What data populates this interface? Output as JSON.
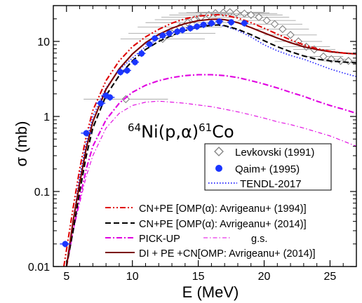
{
  "chart_data": {
    "type": "line",
    "title": "",
    "reaction": {
      "prefix_mass": "64",
      "element": "Ni(p,α)",
      "product_mass": "61",
      "product": "Co"
    },
    "xlabel": "E (MeV)",
    "ylabel": "σ (mb)",
    "xlim": [
      4,
      27
    ],
    "ylim": [
      0.01,
      30
    ],
    "yscale": "log",
    "x_ticks": [
      5,
      10,
      15,
      20,
      25
    ],
    "x_tick_labels": [
      "5",
      "10",
      "15",
      "20",
      "25"
    ],
    "y_ticks": [
      0.01,
      0.1,
      1,
      10
    ],
    "y_tick_labels": [
      "0.01",
      "0.1",
      "1",
      "10"
    ],
    "grid": false,
    "legend_top": {
      "placement": "right-middle",
      "entries": [
        "Levkovski (1991)",
        "Qaim+ (1995)",
        "TENDL-2017"
      ]
    },
    "legend_bottom": {
      "placement": "bottom",
      "entries": [
        "CN+PE [OMP(α): Avrigeanu+ (1994)]",
        "CN+PE [OMP(α): Avrigeanu+ (2014)]",
        "PICK-UP",
        "g.s.",
        "DI + PE +CN[OMP: Avrigeanu+ (2014)]"
      ]
    },
    "series": [
      {
        "name": "Levkovski (1991)",
        "kind": "scatter",
        "marker": "diamond-open",
        "color": "#808080",
        "x": [
          9.5,
          12.3,
          13.0,
          13.6,
          14.2,
          14.7,
          15.2,
          15.8,
          16.3,
          16.9,
          17.4,
          17.9,
          18.5,
          19.0,
          19.6,
          20.2,
          20.8,
          21.4,
          22.0,
          22.6,
          23.2,
          23.8,
          24.5,
          25.1,
          25.8,
          26.4
        ],
        "y": [
          1.7,
          10.8,
          12.8,
          15.5,
          17.8,
          19.5,
          21.0,
          22.5,
          23.8,
          24.2,
          24.5,
          24.0,
          23.5,
          22.5,
          21.0,
          19.0,
          17.0,
          14.6,
          12.2,
          10.0,
          8.5,
          7.8,
          6.3,
          5.8,
          5.5,
          5.5
        ],
        "xerr": [
          3.2,
          3.2,
          3.3,
          3.2,
          3.2,
          3.0,
          3.0,
          3.0,
          2.8,
          2.8,
          2.6,
          2.5,
          2.5,
          2.4,
          2.3,
          2.2,
          2.1,
          2.0,
          2.0,
          1.8,
          1.8,
          1.6,
          1.5,
          1.4,
          1.3,
          1.2
        ]
      },
      {
        "name": "Qaim+ (1995)",
        "kind": "scatter",
        "marker": "circle-filled",
        "color": "#1a35ff",
        "x": [
          4.9,
          6.5,
          7.6,
          8.0,
          8.3,
          9.1,
          9.6,
          10.2,
          10.7,
          11.3,
          11.7,
          12.3,
          12.8,
          13.4,
          13.8,
          14.4,
          14.9,
          15.4,
          16.0,
          16.6,
          17.5,
          18.5
        ],
        "y": [
          0.02,
          0.6,
          1.5,
          1.9,
          1.8,
          3.9,
          4.1,
          5.3,
          6.9,
          9.2,
          11.0,
          12.0,
          12.8,
          13.5,
          14.2,
          15.0,
          15.8,
          16.7,
          17.5,
          18.5,
          18.0,
          17.5
        ],
        "xerr": [
          0.4,
          0.4,
          0.35,
          0.35,
          0.35,
          0.3,
          0.3,
          0.3,
          0.3,
          0.3,
          0.3,
          0.3,
          0.3,
          0.3,
          0.3,
          0.3,
          0.3,
          0.3,
          0.3,
          0.3,
          0.3,
          0.3
        ],
        "yerr_frac": 0.1
      },
      {
        "name": "TENDL-2017",
        "kind": "line",
        "style": "dotted",
        "color": "#1a1aff",
        "x": [
          5.0,
          5.5,
          6.0,
          6.5,
          7.0,
          8.0,
          9.0,
          10.0,
          11.0,
          12.0,
          13.0,
          14.0,
          15.0,
          16.0,
          17.0,
          18.0,
          19.0,
          20.0,
          21.0,
          22.0,
          23.0,
          24.0,
          25.0,
          26.0,
          27.0
        ],
        "y": [
          0.01,
          0.04,
          0.16,
          0.45,
          1.0,
          2.4,
          4.2,
          6.0,
          8.5,
          11.0,
          13.0,
          15.0,
          16.5,
          17.0,
          16.0,
          14.0,
          11.5,
          9.0,
          7.5,
          6.5,
          5.8,
          5.0,
          4.3,
          3.8,
          3.4
        ]
      },
      {
        "name": "CN+PE [OMP(α): Avrigeanu+ (1994)]",
        "kind": "line",
        "style": "dash-dot-dot",
        "color": "#e00000",
        "x": [
          4.8,
          5.5,
          6.0,
          6.5,
          7.0,
          8.0,
          9.0,
          10.0,
          11.0,
          12.0,
          13.0,
          14.0,
          15.0,
          16.0,
          16.5,
          17.0,
          18.0,
          19.0,
          20.0,
          21.0,
          22.0,
          23.0,
          24.0,
          25.0,
          26.0,
          27.0
        ],
        "y": [
          0.01,
          0.06,
          0.2,
          0.55,
          1.2,
          3.0,
          5.5,
          8.5,
          11.5,
          14.5,
          17.5,
          20.0,
          21.7,
          22.5,
          22.7,
          22.3,
          20.5,
          17.8,
          15.0,
          12.5,
          10.5,
          9.0,
          8.0,
          7.4,
          7.0,
          6.8
        ]
      },
      {
        "name": "CN+PE [OMP(α): Avrigeanu+ (2014)]",
        "kind": "line",
        "style": "dashed",
        "color": "#000000",
        "x": [
          5.0,
          5.5,
          6.0,
          6.5,
          7.0,
          8.0,
          9.0,
          10.0,
          11.0,
          12.0,
          13.0,
          14.0,
          15.0,
          16.0,
          16.5,
          17.0,
          18.0,
          19.0,
          20.0,
          21.0,
          22.0,
          23.0,
          24.0,
          25.0,
          26.0,
          27.0
        ],
        "y": [
          0.01,
          0.03,
          0.1,
          0.3,
          0.7,
          1.9,
          3.5,
          5.5,
          7.8,
          10.0,
          12.0,
          14.0,
          15.5,
          16.4,
          16.6,
          16.2,
          14.5,
          12.3,
          10.2,
          8.5,
          7.3,
          6.4,
          5.8,
          5.5,
          5.3,
          5.2
        ]
      },
      {
        "name": "PICK-UP",
        "kind": "line",
        "style": "dash-dot",
        "color": "#e000e0",
        "x": [
          5.0,
          5.5,
          6.0,
          6.5,
          7.0,
          8.0,
          9.0,
          10.0,
          11.0,
          12.0,
          13.0,
          14.0,
          15.0,
          16.0,
          17.0,
          18.0,
          19.0,
          20.0,
          21.0,
          22.0,
          23.0,
          24.0,
          25.0,
          26.0,
          27.0
        ],
        "y": [
          0.01,
          0.03,
          0.08,
          0.2,
          0.4,
          0.9,
          1.5,
          2.1,
          2.6,
          3.0,
          3.3,
          3.5,
          3.6,
          3.6,
          3.5,
          3.3,
          3.0,
          2.7,
          2.4,
          2.1,
          1.85,
          1.6,
          1.4,
          1.25,
          1.1
        ]
      },
      {
        "name": "g.s.",
        "kind": "line",
        "style": "dash-dot-thin",
        "color": "#e000e0",
        "x": [
          5.0,
          5.5,
          6.0,
          6.5,
          7.0,
          8.0,
          9.0,
          10.0,
          11.0,
          12.0,
          13.0,
          14.0,
          15.0,
          16.0,
          17.0,
          18.0,
          19.0,
          20.0,
          21.0,
          22.0,
          23.0,
          24.0,
          25.0,
          26.0,
          27.0
        ],
        "y": [
          0.01,
          0.03,
          0.07,
          0.16,
          0.3,
          0.7,
          1.1,
          1.4,
          1.55,
          1.6,
          1.55,
          1.5,
          1.42,
          1.35,
          1.25,
          1.15,
          1.05,
          0.95,
          0.85,
          0.78,
          0.7,
          0.62,
          0.55,
          0.47,
          0.4
        ]
      },
      {
        "name": "DI + PE +CN[OMP: Avrigeanu+ (2014)]",
        "kind": "line",
        "style": "solid",
        "color": "#7a0000",
        "x": [
          5.0,
          5.5,
          6.0,
          6.5,
          7.0,
          8.0,
          9.0,
          10.0,
          11.0,
          12.0,
          13.0,
          14.0,
          15.0,
          16.0,
          16.5,
          17.0,
          18.0,
          19.0,
          20.0,
          21.0,
          22.0,
          23.0,
          24.0,
          25.0,
          26.0,
          27.0
        ],
        "y": [
          0.01,
          0.04,
          0.13,
          0.38,
          0.85,
          2.3,
          4.3,
          6.8,
          9.6,
          12.4,
          15.0,
          17.3,
          18.9,
          19.7,
          19.8,
          19.5,
          17.8,
          15.3,
          13.0,
          11.1,
          9.6,
          8.5,
          7.8,
          7.3,
          7.0,
          6.8
        ]
      }
    ]
  }
}
